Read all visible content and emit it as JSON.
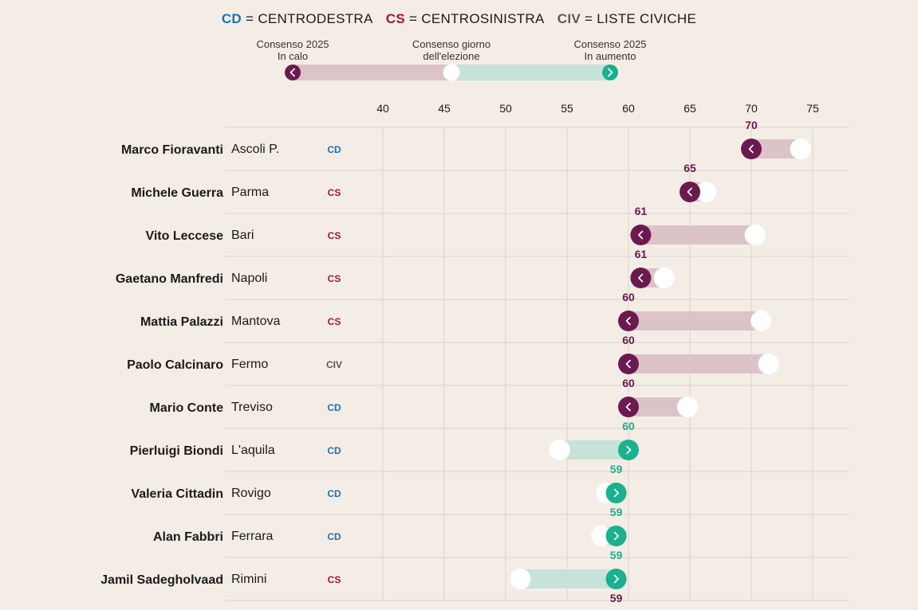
{
  "legend": {
    "cd_abbr": "CD",
    "cd_text": "CENTRODESTRA",
    "cs_abbr": "CS",
    "cs_text": "CENTROSINISTRA",
    "civ_abbr": "CIV",
    "civ_text": "LISTE CIVICHE",
    "eq": "=",
    "key_down": [
      "Consenso 2025",
      "In calo"
    ],
    "key_election": [
      "Consenso giorno",
      "dell'elezione"
    ],
    "key_up": [
      "Consenso 2025",
      "In aumento"
    ]
  },
  "colors": {
    "background": "#f4ede6",
    "down_dark": "#6b1a4f",
    "down_bar": "#dcc3c8",
    "up_dark": "#1bb08f",
    "up_bar": "#c7e2d8",
    "cd": "#1a72b5",
    "cs": "#a5162f",
    "civ": "#5a5a5a",
    "grid": "#dcd3cb"
  },
  "chart_data": {
    "type": "dumbbell",
    "xlim": [
      37,
      78
    ],
    "ticks": [
      40,
      45,
      50,
      55,
      60,
      65,
      70,
      75
    ],
    "series_meaning": {
      "value_2025": "Consenso 2025",
      "election": "Consenso giorno dell'elezione"
    },
    "rows": [
      {
        "name": "Marco Fioravanti",
        "city": "Ascoli P.",
        "party": "CD",
        "value_2025": 70,
        "election": 74,
        "direction": "down"
      },
      {
        "name": "Michele Guerra",
        "city": "Parma",
        "party": "CS",
        "value_2025": 65,
        "election": 66.3,
        "direction": "down"
      },
      {
        "name": "Vito Leccese",
        "city": "Bari",
        "party": "CS",
        "value_2025": 61,
        "election": 70.3,
        "direction": "down"
      },
      {
        "name": "Gaetano Manfredi",
        "city": "Napoli",
        "party": "CS",
        "value_2025": 61,
        "election": 62.9,
        "direction": "down"
      },
      {
        "name": "Mattia Palazzi",
        "city": "Mantova",
        "party": "CS",
        "value_2025": 60,
        "election": 70.8,
        "direction": "down"
      },
      {
        "name": "Paolo Calcinaro",
        "city": "Fermo",
        "party": "CIV",
        "value_2025": 60,
        "election": 71.4,
        "direction": "down"
      },
      {
        "name": "Mario Conte",
        "city": "Treviso",
        "party": "CD",
        "value_2025": 60,
        "election": 64.8,
        "direction": "down"
      },
      {
        "name": "Pierluigi Biondi",
        "city": "L'aquila",
        "party": "CD",
        "value_2025": 60,
        "election": 54.4,
        "direction": "up"
      },
      {
        "name": "Valeria Cittadin",
        "city": "Rovigo",
        "party": "CD",
        "value_2025": 59,
        "election": 58.2,
        "direction": "up"
      },
      {
        "name": "Alan Fabbri",
        "city": "Ferrara",
        "party": "CD",
        "value_2025": 59,
        "election": 57.8,
        "direction": "up"
      },
      {
        "name": "Jamil Sadegholvaad",
        "city": "Rimini",
        "party": "CS",
        "value_2025": 59,
        "election": 51.2,
        "direction": "up"
      }
    ],
    "extra_value_label": {
      "value": 59,
      "direction": "down"
    }
  }
}
